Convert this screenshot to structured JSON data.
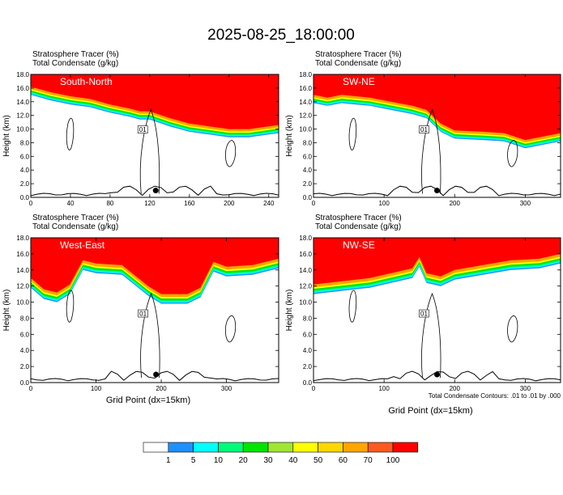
{
  "title": "2025-08-25_18:00:00",
  "chart_data": [
    {
      "type": "area",
      "panel_label": "South-North",
      "header_line1": "Stratosphere Tracer   (%)",
      "header_line2": "Total Condensate   (g/kg)",
      "ylabel": "Height (km)",
      "xlabel": "",
      "xlim": [
        0,
        250
      ],
      "ylim": [
        0,
        18
      ],
      "xticks": [
        0,
        40,
        80,
        120,
        160,
        200,
        240
      ],
      "yticks": [
        0,
        2,
        4,
        6,
        8,
        10,
        12,
        14,
        16,
        18
      ],
      "tropopause_x": [
        0,
        20,
        40,
        60,
        80,
        100,
        110,
        120,
        140,
        160,
        180,
        200,
        220,
        240,
        250
      ],
      "tropopause_y": [
        16.2,
        15.4,
        14.8,
        14.4,
        13.6,
        13.0,
        12.6,
        12.6,
        11.6,
        10.8,
        10.4,
        10.0,
        10.0,
        10.4,
        10.6
      ],
      "marker": {
        "x": 126,
        "y": 1.0
      },
      "contour_label": "01"
    },
    {
      "type": "area",
      "panel_label": "SW-NE",
      "header_line1": "Stratosphere Tracer   (%)",
      "header_line2": "Total Condensate   (g/kg)",
      "ylabel": "Height (km)",
      "xlabel": "",
      "xlim": [
        0,
        350
      ],
      "ylim": [
        0,
        18
      ],
      "xticks": [
        0,
        100,
        200,
        300
      ],
      "yticks": [
        0,
        2,
        4,
        6,
        8,
        10,
        12,
        14,
        16,
        18
      ],
      "tropopause_x": [
        0,
        20,
        40,
        60,
        80,
        100,
        120,
        140,
        160,
        180,
        200,
        240,
        270,
        300,
        330,
        350
      ],
      "tropopause_y": [
        15.0,
        14.6,
        15.0,
        14.8,
        14.6,
        14.2,
        13.8,
        13.4,
        12.8,
        10.8,
        9.8,
        9.6,
        9.4,
        8.4,
        9.0,
        9.4
      ],
      "marker": {
        "x": 175,
        "y": 1.0
      },
      "contour_label": "01"
    },
    {
      "type": "area",
      "panel_label": "West-East",
      "header_line1": "Stratosphere Tracer   (%)",
      "header_line2": "Total Condensate   (g/kg)",
      "ylabel": "Height (km)",
      "xlabel": "Grid Point (dx=15km)",
      "xlim": [
        0,
        380
      ],
      "ylim": [
        0,
        18
      ],
      "xticks": [
        0,
        100,
        200,
        300
      ],
      "yticks": [
        0,
        2,
        4,
        6,
        8,
        10,
        12,
        14,
        16,
        18
      ],
      "tropopause_x": [
        0,
        20,
        40,
        60,
        80,
        100,
        140,
        180,
        200,
        240,
        260,
        280,
        300,
        340,
        380
      ],
      "tropopause_y": [
        13.0,
        11.6,
        11.2,
        12.2,
        15.2,
        14.8,
        14.6,
        12.0,
        11.0,
        11.0,
        11.8,
        15.0,
        14.4,
        14.6,
        15.4
      ],
      "marker": {
        "x": 192,
        "y": 1.0
      },
      "contour_label": "01"
    },
    {
      "type": "area",
      "panel_label": "NW-SE",
      "header_line1": "Stratosphere Tracer   (%)",
      "header_line2": "Total Condensate   (g/kg)",
      "ylabel": "Height (km)",
      "xlabel": "Grid Point (dx=15km)",
      "note": "Total Condensate Contours: .01 to .01 by .000",
      "xlim": [
        0,
        350
      ],
      "ylim": [
        0,
        18
      ],
      "xticks": [
        0,
        100,
        200,
        300
      ],
      "yticks": [
        0,
        2,
        4,
        6,
        8,
        10,
        12,
        14,
        16,
        18
      ],
      "tropopause_x": [
        0,
        20,
        40,
        60,
        80,
        100,
        120,
        140,
        150,
        160,
        180,
        200,
        240,
        280,
        320,
        350
      ],
      "tropopause_y": [
        12.2,
        12.4,
        12.6,
        12.8,
        13.0,
        13.4,
        13.8,
        14.2,
        15.6,
        13.6,
        13.2,
        14.0,
        14.6,
        15.2,
        15.4,
        16.0
      ],
      "marker": {
        "x": 175,
        "y": 1.0
      },
      "contour_label": "01"
    }
  ],
  "colorbar": {
    "labels": [
      "1",
      "5",
      "10",
      "20",
      "30",
      "40",
      "50",
      "60",
      "70",
      "100"
    ],
    "colors": [
      "#ffffff",
      "#1e90ff",
      "#00ffff",
      "#00fa7a",
      "#00e400",
      "#a0e632",
      "#ffff00",
      "#ffd700",
      "#ffa500",
      "#ff5a1e",
      "#ff0000"
    ]
  }
}
